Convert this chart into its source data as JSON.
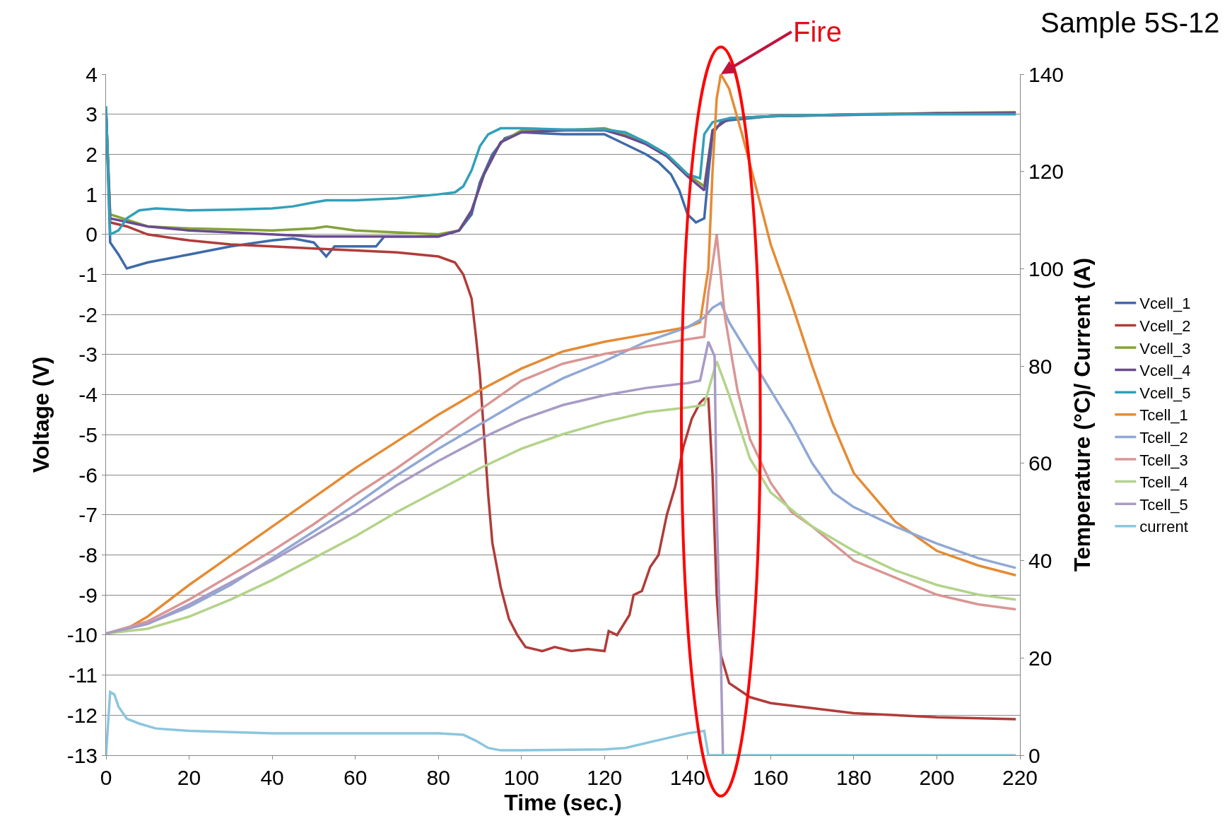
{
  "chart_data": {
    "type": "line",
    "title": "Sample 5S-12",
    "xlabel": "Time (sec.)",
    "ylabel": "Voltage (V)",
    "y2label": "Temperature (°C)/ Current (A)",
    "xlim": [
      0,
      220
    ],
    "xticks": [
      0,
      20,
      40,
      60,
      80,
      100,
      120,
      140,
      160,
      180,
      200,
      220
    ],
    "ylim": [
      -13,
      4
    ],
    "yticks": [
      -13,
      -12,
      -11,
      -10,
      -9,
      -8,
      -7,
      -6,
      -5,
      -4,
      -3,
      -2,
      -1,
      0,
      1,
      2,
      3,
      4
    ],
    "y2lim": [
      0,
      140
    ],
    "y2ticks": [
      0,
      20,
      40,
      60,
      80,
      100,
      120,
      140
    ],
    "grid": "y",
    "legend": "right",
    "marker": "none",
    "line_style": "solid",
    "annotations": [
      {
        "text": "Fire",
        "x": 148,
        "y": 4
      }
    ],
    "series": [
      {
        "name": "Vcell_1",
        "color": "#3e6aa8",
        "x": [
          0,
          1,
          3,
          5,
          10,
          20,
          30,
          40,
          45,
          50,
          53,
          55,
          60,
          65,
          67,
          70,
          80,
          85,
          88,
          90,
          93,
          96,
          100,
          110,
          120,
          122,
          125,
          130,
          133,
          136,
          138,
          140,
          142,
          144,
          145,
          146,
          148,
          150,
          160,
          180,
          200,
          219
        ],
        "values": [
          3.1,
          -0.2,
          -0.5,
          -0.85,
          -0.7,
          -0.5,
          -0.3,
          -0.15,
          -0.1,
          -0.2,
          -0.55,
          -0.3,
          -0.3,
          -0.3,
          -0.05,
          -0.05,
          -0.05,
          0.1,
          0.5,
          1.3,
          2.0,
          2.4,
          2.55,
          2.5,
          2.5,
          2.4,
          2.25,
          2.0,
          1.8,
          1.5,
          1.1,
          0.5,
          0.3,
          0.4,
          1.5,
          2.5,
          2.8,
          2.85,
          2.95,
          3.0,
          3.02,
          3.02
        ]
      },
      {
        "name": "Vcell_2",
        "color": "#b03c3a",
        "x": [
          0,
          1,
          5,
          10,
          20,
          30,
          40,
          50,
          60,
          70,
          80,
          84,
          86,
          88,
          89,
          90,
          91,
          92,
          93,
          95,
          97,
          99,
          101,
          105,
          108,
          112,
          116,
          120,
          121,
          123,
          126,
          127,
          129,
          131,
          133,
          135,
          137,
          139,
          141,
          143,
          144,
          145,
          146,
          147,
          148,
          150,
          155,
          160,
          180,
          200,
          219
        ],
        "values": [
          3.1,
          0.3,
          0.2,
          0.0,
          -0.15,
          -0.25,
          -0.3,
          -0.35,
          -0.4,
          -0.45,
          -0.55,
          -0.7,
          -1.0,
          -1.6,
          -2.5,
          -3.5,
          -5,
          -6.5,
          -7.7,
          -8.8,
          -9.6,
          -10.0,
          -10.3,
          -10.4,
          -10.3,
          -10.4,
          -10.35,
          -10.4,
          -9.9,
          -10.0,
          -9.5,
          -9.0,
          -8.9,
          -8.3,
          -8.0,
          -7.0,
          -6.3,
          -5.3,
          -4.6,
          -4.2,
          -4.1,
          -4.1,
          -6,
          -9,
          -10.5,
          -11.2,
          -11.55,
          -11.7,
          -11.95,
          -12.05,
          -12.1
        ]
      },
      {
        "name": "Vcell_3",
        "color": "#84a23c",
        "x": [
          0,
          1,
          10,
          20,
          40,
          50,
          53,
          60,
          70,
          80,
          85,
          88,
          91,
          95,
          100,
          110,
          120,
          125,
          130,
          135,
          140,
          144,
          146,
          150,
          160,
          200,
          219
        ],
        "values": [
          3.1,
          0.5,
          0.2,
          0.15,
          0.1,
          0.15,
          0.2,
          0.1,
          0.05,
          0.0,
          0.1,
          0.6,
          1.5,
          2.3,
          2.6,
          2.6,
          2.65,
          2.5,
          2.3,
          2.0,
          1.5,
          1.2,
          2.6,
          2.9,
          2.95,
          3.03,
          3.05
        ]
      },
      {
        "name": "Vcell_4",
        "color": "#6a4a91",
        "x": [
          0,
          1,
          10,
          20,
          30,
          40,
          50,
          60,
          70,
          80,
          85,
          88,
          91,
          95,
          100,
          110,
          120,
          125,
          130,
          135,
          140,
          144,
          146,
          150,
          160,
          200,
          219
        ],
        "values": [
          3.1,
          0.4,
          0.2,
          0.1,
          0.05,
          0.0,
          -0.05,
          -0.05,
          -0.05,
          -0.05,
          0.1,
          0.6,
          1.5,
          2.3,
          2.55,
          2.6,
          2.6,
          2.45,
          2.25,
          1.95,
          1.45,
          1.1,
          2.6,
          2.9,
          2.95,
          3.02,
          3.03
        ]
      },
      {
        "name": "Vcell_5",
        "color": "#31a0b8",
        "x": [
          0,
          1,
          3,
          5,
          8,
          12,
          20,
          30,
          40,
          45,
          50,
          53,
          60,
          70,
          80,
          84,
          86,
          88,
          90,
          92,
          95,
          100,
          110,
          120,
          125,
          130,
          135,
          140,
          143,
          144,
          146,
          150,
          160,
          180,
          200,
          219
        ],
        "values": [
          3.2,
          0.0,
          0.1,
          0.4,
          0.6,
          0.65,
          0.6,
          0.62,
          0.65,
          0.7,
          0.8,
          0.85,
          0.85,
          0.9,
          1.0,
          1.05,
          1.2,
          1.6,
          2.2,
          2.5,
          2.65,
          2.65,
          2.62,
          2.62,
          2.55,
          2.3,
          2.0,
          1.5,
          1.4,
          2.5,
          2.8,
          2.9,
          2.95,
          3.0,
          3.0,
          3.0
        ]
      },
      {
        "name": "Tcell_1",
        "color": "#e58b34",
        "axis": "y2",
        "x": [
          0,
          5,
          10,
          20,
          30,
          40,
          50,
          60,
          70,
          80,
          90,
          100,
          110,
          120,
          130,
          140,
          143,
          145,
          146,
          147,
          148,
          150,
          153,
          157,
          160,
          165,
          170,
          175,
          180,
          190,
          200,
          210,
          219
        ],
        "values": [
          25,
          26,
          28.5,
          35,
          41,
          47,
          53,
          59,
          64.5,
          70,
          75,
          79.5,
          83,
          85,
          86.5,
          88,
          89,
          100,
          120,
          135,
          140,
          137,
          128,
          115,
          105,
          93,
          80,
          68,
          58,
          48,
          42,
          39,
          37
        ]
      },
      {
        "name": "Tcell_2",
        "color": "#8fa8d6",
        "axis": "y2",
        "x": [
          0,
          10,
          20,
          30,
          40,
          50,
          60,
          70,
          80,
          90,
          100,
          110,
          120,
          130,
          140,
          144,
          146,
          148,
          150,
          155,
          160,
          165,
          170,
          175,
          180,
          190,
          200,
          210,
          219
        ],
        "values": [
          25,
          27,
          30.5,
          35,
          40.5,
          46,
          51.5,
          57.5,
          63,
          68,
          73,
          77.5,
          81,
          85,
          88,
          90,
          92,
          93,
          89,
          82,
          75,
          68,
          60,
          54,
          51,
          47,
          43.5,
          40.5,
          38.5
        ]
      },
      {
        "name": "Tcell_3",
        "color": "#d99694",
        "axis": "y2",
        "x": [
          0,
          10,
          20,
          30,
          40,
          50,
          60,
          70,
          80,
          90,
          100,
          110,
          120,
          130,
          140,
          144,
          145,
          147,
          149,
          152,
          155,
          160,
          165,
          170,
          180,
          190,
          200,
          210,
          219
        ],
        "values": [
          25,
          27.5,
          32,
          37,
          42,
          47.5,
          53.5,
          59,
          65,
          71,
          77,
          80.5,
          82.5,
          84,
          85.5,
          86,
          95,
          107,
          90,
          75,
          65,
          56,
          50,
          47,
          40,
          36.5,
          33,
          31,
          30
        ]
      },
      {
        "name": "Tcell_4",
        "color": "#b3d38a",
        "axis": "y2",
        "x": [
          0,
          10,
          20,
          30,
          40,
          50,
          60,
          70,
          80,
          90,
          100,
          110,
          120,
          130,
          140,
          144,
          146,
          147,
          150,
          155,
          160,
          170,
          180,
          190,
          200,
          210,
          219
        ],
        "values": [
          25,
          26,
          28.5,
          32,
          36,
          40.5,
          45,
          50,
          54.5,
          59,
          63,
          66,
          68.5,
          70.5,
          71.5,
          72,
          78,
          81,
          74,
          61,
          54,
          47,
          42,
          38,
          35,
          33,
          32
        ]
      },
      {
        "name": "Tcell_5",
        "color": "#a89bc6",
        "axis": "y2",
        "x": [
          0,
          10,
          20,
          30,
          40,
          50,
          60,
          70,
          80,
          90,
          100,
          110,
          120,
          130,
          140,
          143,
          145,
          146.5,
          147,
          148,
          148.5
        ],
        "values": [
          25,
          27,
          31,
          35.5,
          40,
          45,
          50,
          55.5,
          60.5,
          65,
          69,
          72,
          74,
          75.5,
          76.5,
          77,
          85,
          82,
          50,
          20,
          0
        ]
      },
      {
        "name": "current",
        "color": "#8cc6dd",
        "axis": "y2",
        "x": [
          0,
          1,
          2,
          3,
          5,
          8,
          12,
          20,
          40,
          60,
          80,
          86,
          89,
          92,
          95,
          100,
          120,
          125,
          130,
          135,
          140,
          144,
          145,
          219
        ],
        "values": [
          0,
          13,
          12.5,
          10,
          7.5,
          6.5,
          5.5,
          5,
          4.5,
          4.5,
          4.5,
          4.2,
          3,
          1.5,
          1,
          1,
          1.2,
          1.5,
          2.5,
          3.5,
          4.5,
          5,
          0,
          0
        ]
      }
    ]
  }
}
